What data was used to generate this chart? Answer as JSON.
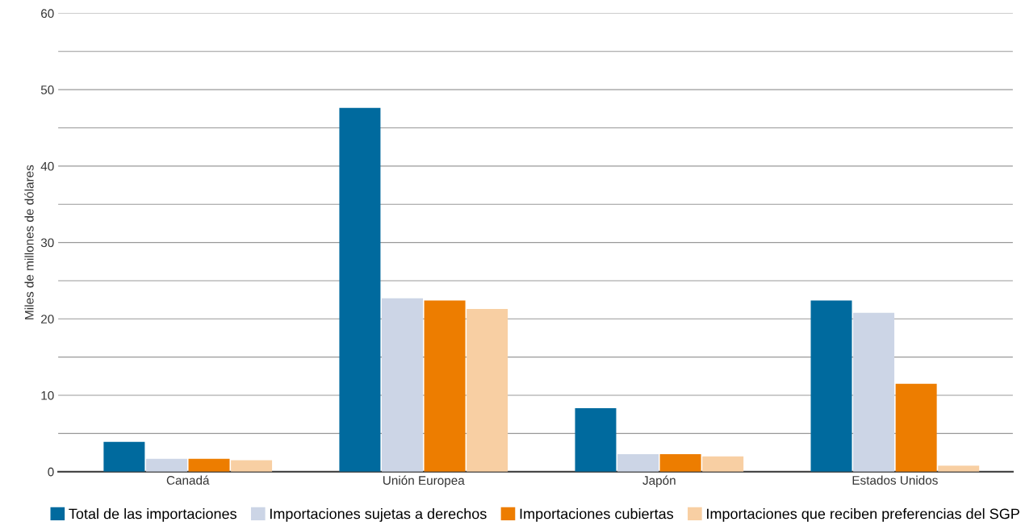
{
  "chart_data": {
    "type": "bar",
    "ylabel": "Miles de millones de dólares",
    "categories": [
      "Canadá",
      "Unión Europea",
      "Japón",
      "Estados Unidos"
    ],
    "series": [
      {
        "name": "Total de las importaciones",
        "color": "#006a9e",
        "values": [
          3.9,
          47.6,
          8.3,
          22.4
        ]
      },
      {
        "name": "Importaciones sujetas a derechos",
        "color": "#ccd5e6",
        "values": [
          1.7,
          22.7,
          2.3,
          20.8
        ]
      },
      {
        "name": "Importaciones cubiertas",
        "color": "#ed7d00",
        "values": [
          1.7,
          22.4,
          2.3,
          11.5
        ]
      },
      {
        "name": "Importaciones que reciben preferencias del SGP",
        "color": "#f8cfa3",
        "values": [
          1.5,
          21.3,
          2.0,
          0.8
        ]
      }
    ],
    "ylim": [
      0,
      60
    ],
    "yticks": [
      0,
      {
        "value": 5,
        "label": null
      },
      10,
      {
        "value": 15,
        "label": null
      },
      20,
      {
        "value": 25,
        "label": null
      },
      30,
      {
        "value": 35,
        "label": null
      },
      40,
      {
        "value": 45,
        "label": null
      },
      50,
      {
        "value": 55,
        "label": null
      },
      60
    ],
    "grid": "y",
    "legend": "bottom"
  }
}
